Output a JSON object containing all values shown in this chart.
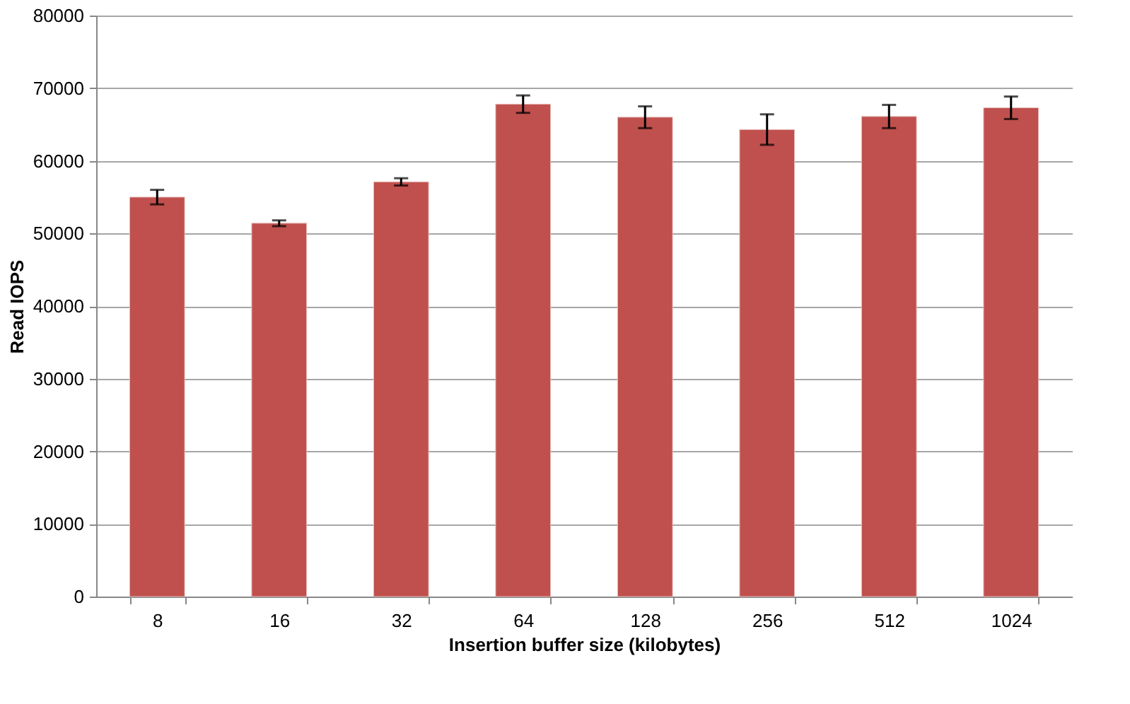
{
  "chart_data": {
    "type": "bar",
    "xlabel": "Insertion buffer size (kilobytes)",
    "ylabel": "Read IOPS",
    "categories": [
      "8",
      "16",
      "32",
      "64",
      "128",
      "256",
      "512",
      "1024"
    ],
    "values": [
      55000,
      51400,
      57100,
      67800,
      66000,
      64300,
      66100,
      67300
    ],
    "errors": [
      1000,
      400,
      500,
      1200,
      1500,
      2100,
      1600,
      1550
    ],
    "color": "#c0504d",
    "ylim": [
      0,
      80000
    ],
    "yticks": [
      0,
      10000,
      20000,
      30000,
      40000,
      50000,
      60000,
      70000,
      80000
    ],
    "grid": "y"
  }
}
